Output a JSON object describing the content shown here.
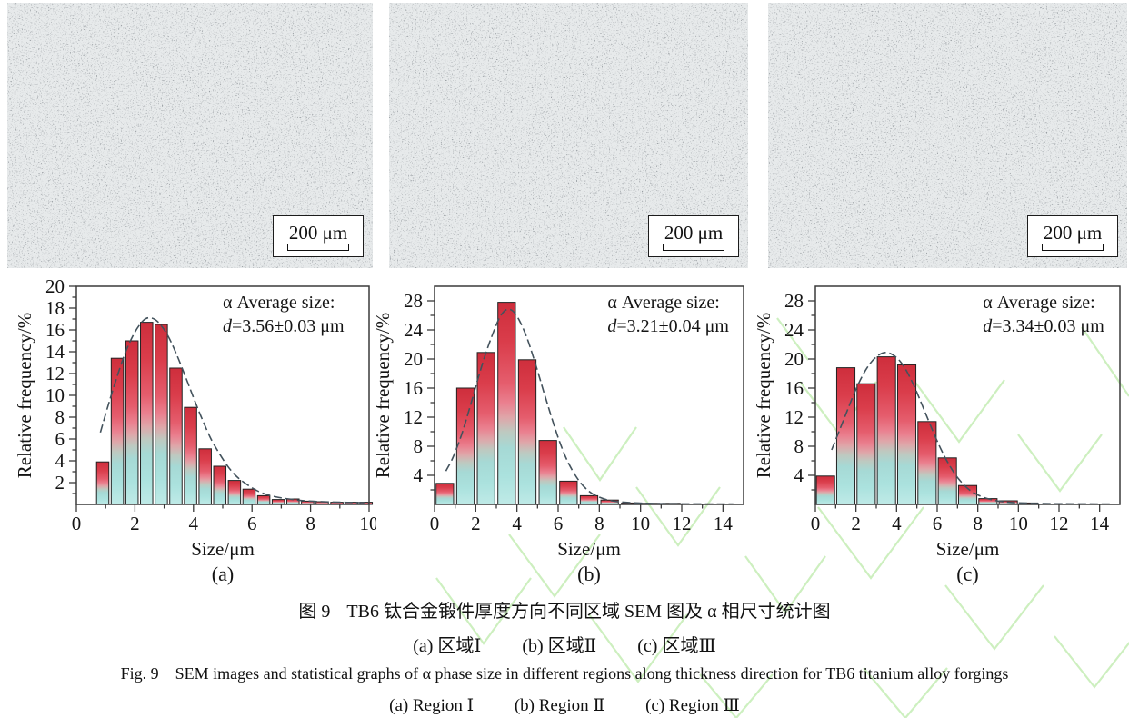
{
  "figure": {
    "caption_zh_label": "图 9",
    "caption_zh_text": "TB6 钛合金锻件厚度方向不同区域 SEM 图及 α 相尺寸统计图",
    "caption_zh_sub": [
      "(a) 区域Ⅰ",
      "(b) 区域Ⅱ",
      "(c) 区域Ⅲ"
    ],
    "caption_en_label": "Fig. 9",
    "caption_en_text": "SEM images and statistical graphs of α phase size in different regions along thickness direction for TB6 titanium alloy forgings",
    "caption_en_sub": [
      "(a) Region Ⅰ",
      "(b) Region Ⅱ",
      "(c) Region Ⅲ"
    ]
  },
  "sem_images": [
    {
      "scale_bar": "200 μm"
    },
    {
      "scale_bar": "200 μm"
    },
    {
      "scale_bar": "200 μm"
    }
  ],
  "colors": {
    "axis": "#3a3a3a",
    "curve": "#43525c",
    "bar_outline": "#222222",
    "sem_gray": "#8a9095",
    "watermark_green": "#c8eeb9"
  },
  "bar_gradient": [
    [
      "0%",
      "#ce2e3c"
    ],
    [
      "20%",
      "#da3d4b"
    ],
    [
      "40%",
      "#e55d6d"
    ],
    [
      "50%",
      "#ea8190"
    ],
    [
      "57%",
      "#dfa6a9"
    ],
    [
      "64%",
      "#bec9c0"
    ],
    [
      "72%",
      "#a6d9d5"
    ],
    [
      "86%",
      "#abe2de"
    ],
    [
      "100%",
      "#bfeae7"
    ]
  ],
  "chart_data": [
    {
      "type": "bar",
      "label": "(a)",
      "xlabel": "Size/μm",
      "ylabel": "Relative frequency/%",
      "xlim": [
        0,
        10
      ],
      "ylim": [
        0,
        20
      ],
      "x_major_step": 2,
      "x_minor_step": 1,
      "y_major_step": 2,
      "y_minor_step": 1,
      "grid": false,
      "ann_x": 0.5,
      "annotation": {
        "line1": "α Average size:",
        "d": "d",
        "rest": "=3.56±0.03 μm"
      },
      "bars": {
        "bar_width": 0.42,
        "centers": [
          0.9,
          1.4,
          1.9,
          2.4,
          2.9,
          3.4,
          3.9,
          4.4,
          4.9,
          5.4,
          5.9,
          6.4,
          6.9,
          7.4,
          7.9,
          8.4,
          8.9,
          9.4,
          9.9
        ],
        "values": [
          3.9,
          13.4,
          15.0,
          16.7,
          16.5,
          12.5,
          8.9,
          5.1,
          3.5,
          2.2,
          1.4,
          0.8,
          0.45,
          0.5,
          0.3,
          0.25,
          0.2,
          0.2,
          0.2
        ]
      },
      "curve": [
        [
          0.82,
          6.6
        ],
        [
          1.1,
          9.2
        ],
        [
          1.4,
          11.8
        ],
        [
          1.7,
          14.1
        ],
        [
          2.0,
          15.8
        ],
        [
          2.3,
          16.9
        ],
        [
          2.55,
          17.1
        ],
        [
          2.8,
          16.7
        ],
        [
          3.1,
          15.6
        ],
        [
          3.4,
          13.9
        ],
        [
          3.7,
          11.9
        ],
        [
          4.0,
          9.8
        ],
        [
          4.3,
          7.8
        ],
        [
          4.6,
          6.0
        ],
        [
          4.9,
          4.6
        ],
        [
          5.2,
          3.4
        ],
        [
          5.5,
          2.5
        ],
        [
          5.9,
          1.7
        ],
        [
          6.3,
          1.1
        ],
        [
          6.8,
          0.7
        ],
        [
          7.4,
          0.45
        ],
        [
          8.0,
          0.3
        ],
        [
          9.0,
          0.2
        ],
        [
          10.0,
          0.15
        ]
      ]
    },
    {
      "type": "bar",
      "label": "(b)",
      "xlabel": "Size/μm",
      "ylabel": "Relative frequency/%",
      "xlim": [
        0,
        15
      ],
      "ylim": [
        0,
        30
      ],
      "x_major_step": 2,
      "x_minor_step": 1,
      "y_major_step": 4,
      "y_minor_step": 2,
      "grid": false,
      "ann_x": 0.56,
      "annotation": {
        "line1": "α Average size:",
        "d": "d",
        "rest": "=3.21±0.04 μm"
      },
      "bars": {
        "bar_width": 0.85,
        "centers": [
          0.5,
          1.5,
          2.5,
          3.5,
          4.5,
          5.5,
          6.5,
          7.5,
          8.5,
          9.5,
          10.5,
          11.5
        ],
        "values": [
          2.9,
          16.0,
          20.9,
          27.8,
          19.9,
          8.8,
          3.2,
          1.2,
          0.6,
          0.2,
          0.15,
          0.15
        ]
      },
      "curve": [
        [
          0.55,
          4.6
        ],
        [
          0.9,
          6.5
        ],
        [
          1.3,
          9.5
        ],
        [
          1.7,
          13.2
        ],
        [
          2.1,
          17.2
        ],
        [
          2.5,
          20.9
        ],
        [
          2.9,
          24.0
        ],
        [
          3.2,
          25.9
        ],
        [
          3.5,
          26.8
        ],
        [
          3.8,
          26.6
        ],
        [
          4.1,
          25.4
        ],
        [
          4.5,
          22.8
        ],
        [
          4.9,
          19.3
        ],
        [
          5.3,
          15.5
        ],
        [
          5.7,
          11.8
        ],
        [
          6.1,
          8.4
        ],
        [
          6.5,
          5.7
        ],
        [
          7.0,
          3.3
        ],
        [
          7.5,
          1.8
        ],
        [
          8.0,
          1.0
        ],
        [
          8.6,
          0.5
        ],
        [
          9.5,
          0.25
        ],
        [
          11.0,
          0.1
        ],
        [
          14.5,
          0.05
        ]
      ]
    },
    {
      "type": "bar",
      "label": "(c)",
      "xlabel": "Size/μm",
      "ylabel": "Relative frequency/%",
      "xlim": [
        0,
        15
      ],
      "ylim": [
        0,
        30
      ],
      "x_major_step": 2,
      "x_minor_step": 1,
      "y_major_step": 4,
      "y_minor_step": 2,
      "grid": false,
      "ann_x": 0.55,
      "annotation": {
        "line1": "α Average size:",
        "d": "d",
        "rest": "=3.34±0.03 μm"
      },
      "bars": {
        "bar_width": 0.9,
        "centers": [
          0.5,
          1.5,
          2.5,
          3.5,
          4.5,
          5.5,
          6.5,
          7.5,
          8.5,
          9.5,
          10.5
        ],
        "values": [
          3.9,
          18.8,
          16.6,
          20.3,
          19.2,
          11.4,
          6.4,
          2.6,
          0.8,
          0.5,
          0.2
        ]
      },
      "curve": [
        [
          0.8,
          7.5
        ],
        [
          1.1,
          9.6
        ],
        [
          1.5,
          12.4
        ],
        [
          1.9,
          15.2
        ],
        [
          2.3,
          17.6
        ],
        [
          2.7,
          19.4
        ],
        [
          3.1,
          20.5
        ],
        [
          3.45,
          20.9
        ],
        [
          3.8,
          20.6
        ],
        [
          4.2,
          19.6
        ],
        [
          4.6,
          17.8
        ],
        [
          5.0,
          15.4
        ],
        [
          5.4,
          12.7
        ],
        [
          5.8,
          10.0
        ],
        [
          6.2,
          7.5
        ],
        [
          6.6,
          5.4
        ],
        [
          7.0,
          3.7
        ],
        [
          7.5,
          2.2
        ],
        [
          8.0,
          1.3
        ],
        [
          8.6,
          0.7
        ],
        [
          9.3,
          0.35
        ],
        [
          10.2,
          0.2
        ],
        [
          11.5,
          0.1
        ],
        [
          14.5,
          0.05
        ]
      ]
    }
  ]
}
